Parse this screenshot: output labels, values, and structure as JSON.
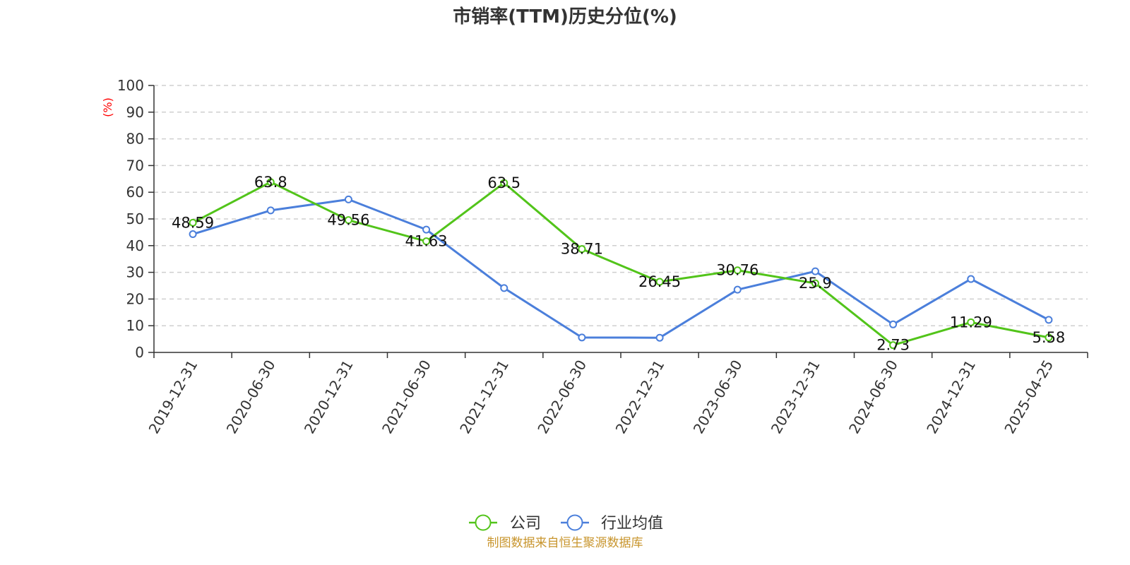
{
  "chart_data": {
    "type": "line",
    "title": "市销率(TTM)历史分位(%)",
    "ylabel": "(%)",
    "xlabel": "",
    "ylim": [
      0,
      100
    ],
    "yticks": [
      0,
      10,
      20,
      30,
      40,
      50,
      60,
      70,
      80,
      90,
      100
    ],
    "grid": "horizontal dashed",
    "legend_position": "bottom-center",
    "categories": [
      "2019-12-31",
      "2020-06-30",
      "2020-12-31",
      "2021-06-30",
      "2021-12-31",
      "2022-06-30",
      "2022-12-31",
      "2023-06-30",
      "2023-12-31",
      "2024-06-30",
      "2024-12-31",
      "2025-04-25"
    ],
    "series": [
      {
        "name": "公司",
        "color": "#52c41a",
        "values": [
          48.59,
          63.8,
          49.56,
          41.63,
          63.5,
          38.71,
          26.45,
          30.76,
          25.9,
          2.73,
          11.29,
          5.58
        ],
        "labels": [
          "48.59",
          "63.8",
          "49.56",
          "41.63",
          "63.5",
          "38.71",
          "26.45",
          "30.76",
          "25.9",
          "2.73",
          "11.29",
          "5.58"
        ]
      },
      {
        "name": "行业均值",
        "color": "#4b7fdb",
        "values": [
          44.3,
          53.2,
          57.3,
          46.0,
          24.1,
          5.6,
          5.5,
          23.5,
          30.4,
          10.5,
          27.5,
          12.2
        ]
      }
    ],
    "source": "制图数据来自恒生聚源数据库"
  }
}
